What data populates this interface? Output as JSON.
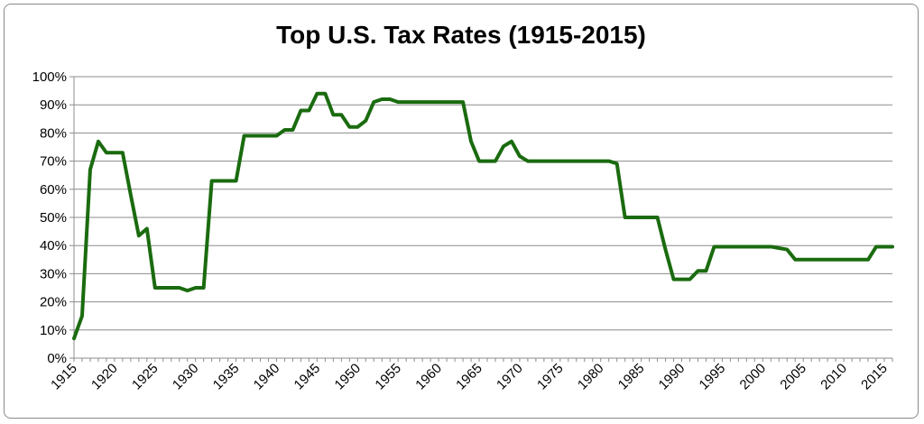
{
  "chart_data": {
    "type": "line",
    "title": "Top U.S. Tax Rates (1915-2015)",
    "xlabel": "",
    "ylabel": "",
    "xlim": [
      1915,
      2016
    ],
    "ylim": [
      0,
      100
    ],
    "y_ticks": [
      "0%",
      "10%",
      "20%",
      "30%",
      "40%",
      "50%",
      "60%",
      "70%",
      "80%",
      "90%",
      "100%"
    ],
    "x_ticks": [
      "1915",
      "1920",
      "1925",
      "1930",
      "1935",
      "1940",
      "1945",
      "1950",
      "1955",
      "1960",
      "1965",
      "1970",
      "1975",
      "1980",
      "1985",
      "1990",
      "1995",
      "2000",
      "2005",
      "2010",
      "2015"
    ],
    "grid": "horizontal",
    "legend": "none",
    "line_color": "#1a6b0f",
    "series": [
      {
        "x": [
          1915,
          1916,
          1917,
          1918,
          1919,
          1920,
          1921,
          1922,
          1923,
          1924,
          1925,
          1926,
          1927,
          1928,
          1929,
          1930,
          1931,
          1932,
          1933,
          1934,
          1935,
          1936,
          1937,
          1938,
          1939,
          1940,
          1941,
          1942,
          1943,
          1944,
          1945,
          1946,
          1947,
          1948,
          1949,
          1950,
          1951,
          1952,
          1953,
          1954,
          1955,
          1956,
          1957,
          1958,
          1959,
          1960,
          1961,
          1962,
          1963,
          1964,
          1965,
          1966,
          1967,
          1968,
          1969,
          1970,
          1971,
          1972,
          1973,
          1974,
          1975,
          1976,
          1977,
          1978,
          1979,
          1980,
          1981,
          1982,
          1983,
          1984,
          1985,
          1986,
          1987,
          1988,
          1989,
          1990,
          1991,
          1992,
          1993,
          1994,
          1995,
          1996,
          1997,
          1998,
          1999,
          2000,
          2001,
          2002,
          2003,
          2004,
          2005,
          2006,
          2007,
          2008,
          2009,
          2010,
          2011,
          2012,
          2013,
          2014,
          2015,
          2016
        ],
        "values": [
          7,
          15,
          67,
          77,
          73,
          73,
          73,
          58,
          43.5,
          46,
          25,
          25,
          25,
          25,
          24,
          25,
          25,
          63,
          63,
          63,
          63,
          79,
          79,
          79,
          79,
          79,
          81.1,
          81.1,
          88,
          88,
          94,
          94,
          86.45,
          86.45,
          82.13,
          82.13,
          84.36,
          91,
          92,
          92,
          91,
          91,
          91,
          91,
          91,
          91,
          91,
          91,
          91,
          77,
          70,
          70,
          70,
          75.25,
          77,
          71.75,
          70,
          70,
          70,
          70,
          70,
          70,
          70,
          70,
          70,
          70,
          70,
          69.13,
          50,
          50,
          50,
          50,
          50,
          38.5,
          28,
          28,
          28,
          31,
          31,
          39.6,
          39.6,
          39.6,
          39.6,
          39.6,
          39.6,
          39.6,
          39.6,
          39.1,
          38.6,
          35,
          35,
          35,
          35,
          35,
          35,
          35,
          35,
          35,
          35,
          39.6,
          39.6,
          39.6
        ]
      }
    ]
  }
}
